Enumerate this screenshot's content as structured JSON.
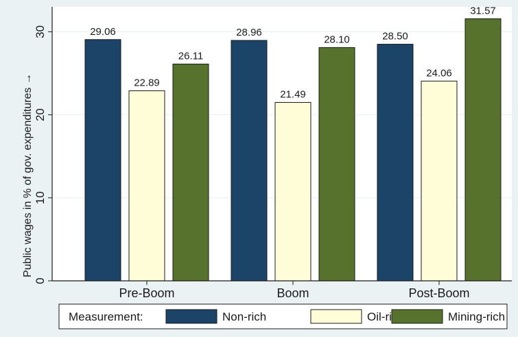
{
  "chart_data": {
    "type": "bar",
    "title": "",
    "xlabel": "",
    "ylabel": "Public wages in % of gov. expenditures →",
    "categories": [
      "Pre-Boom",
      "Boom",
      "Post-Boom"
    ],
    "series": [
      {
        "name": "Non-rich",
        "color": "#1b4468",
        "values": [
          29.06,
          28.96,
          28.5
        ]
      },
      {
        "name": "Oil-rich",
        "color": "#fffdd7",
        "values": [
          22.89,
          21.49,
          24.06
        ]
      },
      {
        "name": "Mining-rich",
        "color": "#56722d",
        "values": [
          26.11,
          28.1,
          31.57
        ]
      }
    ],
    "value_labels": [
      [
        "29.06",
        "28.96",
        "28.50"
      ],
      [
        "22.89",
        "21.49",
        "24.06"
      ],
      [
        "26.11",
        "28.10",
        "31.57"
      ]
    ],
    "yticks": [
      "0",
      "10",
      "20",
      "30"
    ],
    "ylim": [
      0,
      33
    ],
    "grid": true,
    "legend": {
      "title": "Measurement:",
      "position": "bottom"
    },
    "colors": {
      "background": "#eaf2f3",
      "plot_background": "#ffffff",
      "grid": "#eaf2f3"
    }
  }
}
